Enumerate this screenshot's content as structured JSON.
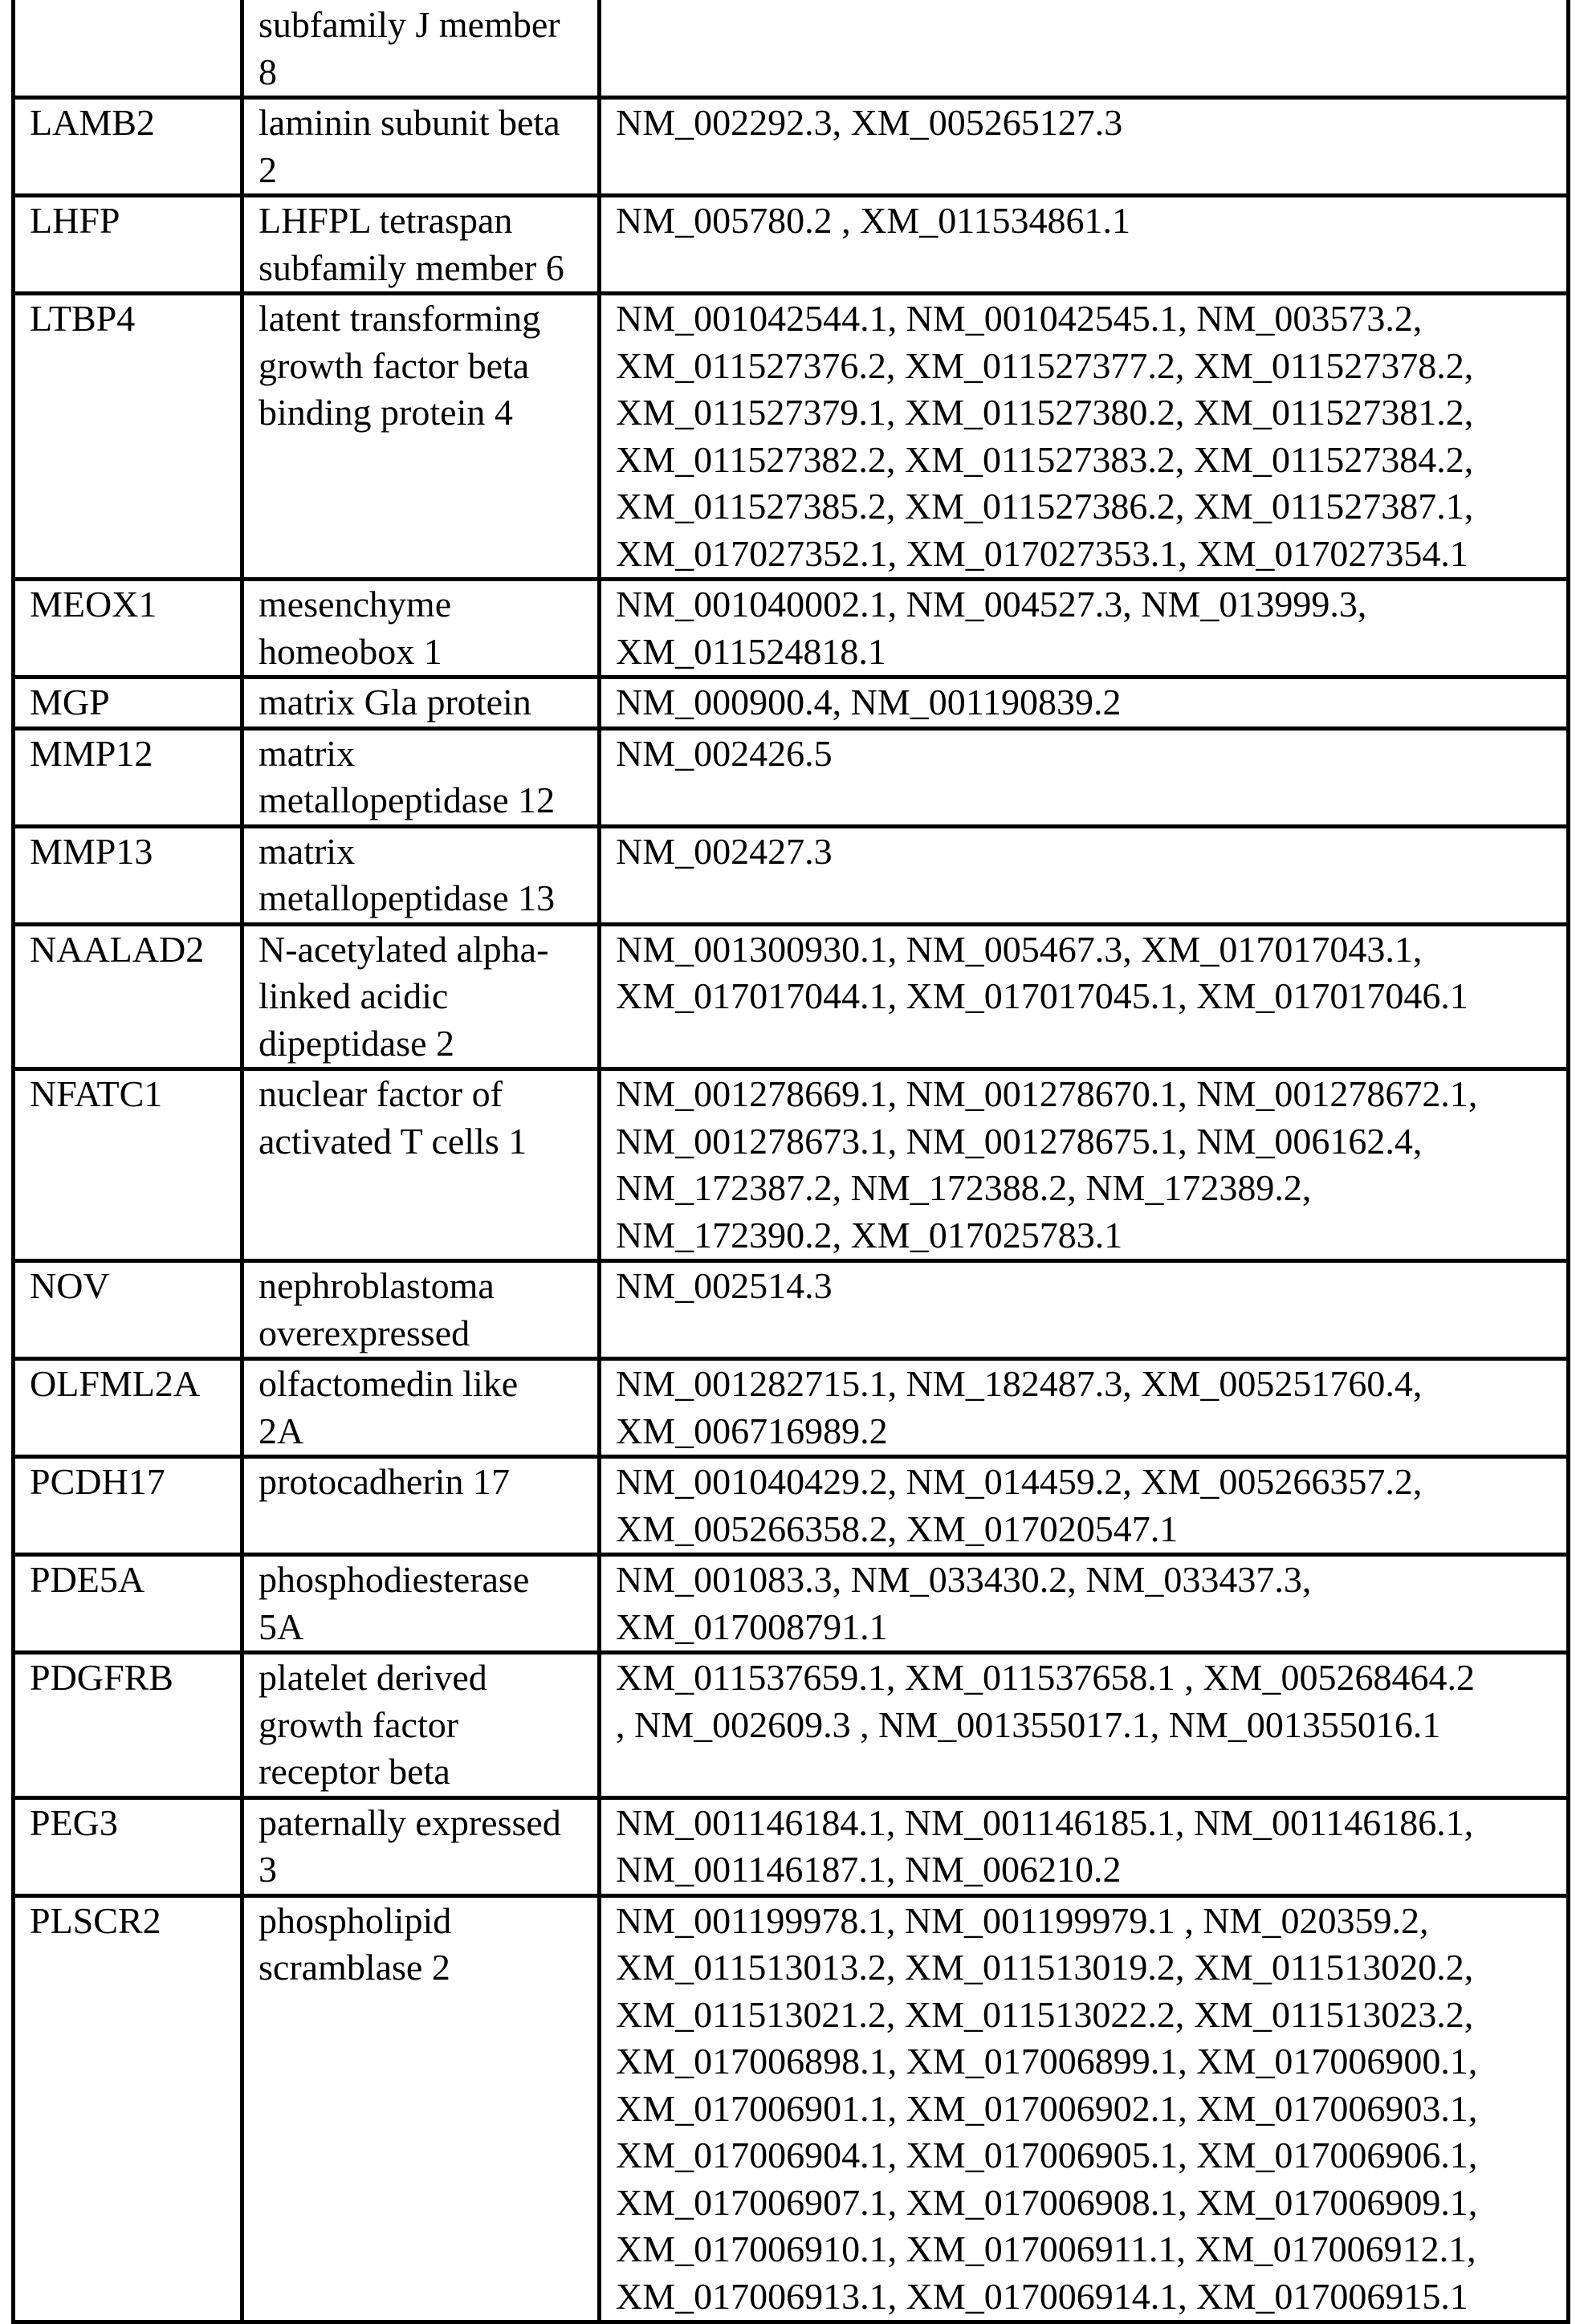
{
  "table": {
    "rows": [
      {
        "symbol": "",
        "name": [
          "subfamily J member",
          "8"
        ],
        "accessions": []
      },
      {
        "symbol": "LAMB2",
        "name": [
          "laminin subunit beta",
          "2"
        ],
        "accessions": [
          "NM_002292.3, XM_005265127.3"
        ]
      },
      {
        "symbol": "LHFP",
        "name": [
          "LHFPL tetraspan",
          "subfamily member 6"
        ],
        "accessions": [
          "NM_005780.2 , XM_011534861.1"
        ]
      },
      {
        "symbol": "LTBP4",
        "name": [
          "latent transforming",
          "growth factor beta",
          "binding protein 4"
        ],
        "accessions": [
          "NM_001042544.1, NM_001042545.1, NM_003573.2,",
          "XM_011527376.2, XM_011527377.2, XM_011527378.2,",
          "XM_011527379.1, XM_011527380.2, XM_011527381.2,",
          "XM_011527382.2, XM_011527383.2, XM_011527384.2,",
          "XM_011527385.2, XM_011527386.2, XM_011527387.1,",
          "XM_017027352.1, XM_017027353.1, XM_017027354.1"
        ]
      },
      {
        "symbol": "MEOX1",
        "name": [
          "mesenchyme",
          "homeobox 1"
        ],
        "accessions": [
          "NM_001040002.1, NM_004527.3, NM_013999.3,",
          "XM_011524818.1"
        ]
      },
      {
        "symbol": "MGP",
        "name": [
          "matrix Gla protein"
        ],
        "accessions": [
          "NM_000900.4, NM_001190839.2"
        ]
      },
      {
        "symbol": "MMP12",
        "name": [
          "matrix",
          "metallopeptidase 12"
        ],
        "accessions": [
          "NM_002426.5"
        ]
      },
      {
        "symbol": "MMP13",
        "name": [
          "matrix",
          "metallopeptidase 13"
        ],
        "accessions": [
          "NM_002427.3"
        ]
      },
      {
        "symbol": "NAALAD2",
        "name": [
          "N-acetylated alpha-",
          "linked acidic",
          "dipeptidase 2"
        ],
        "accessions": [
          "NM_001300930.1, NM_005467.3, XM_017017043.1,",
          "XM_017017044.1, XM_017017045.1, XM_017017046.1"
        ]
      },
      {
        "symbol": "NFATC1",
        "name": [
          "nuclear factor of",
          "activated T cells 1"
        ],
        "accessions": [
          "NM_001278669.1, NM_001278670.1, NM_001278672.1,",
          "NM_001278673.1, NM_001278675.1, NM_006162.4,",
          "NM_172387.2, NM_172388.2, NM_172389.2,",
          "NM_172390.2, XM_017025783.1"
        ]
      },
      {
        "symbol": "NOV",
        "name": [
          "nephroblastoma",
          "overexpressed"
        ],
        "accessions": [
          "NM_002514.3"
        ]
      },
      {
        "symbol": "OLFML2A",
        "name": [
          "olfactomedin like",
          "2A"
        ],
        "accessions": [
          "NM_001282715.1, NM_182487.3, XM_005251760.4,",
          "XM_006716989.2"
        ]
      },
      {
        "symbol": "PCDH17",
        "name": [
          "protocadherin 17"
        ],
        "accessions": [
          "NM_001040429.2, NM_014459.2, XM_005266357.2,",
          "XM_005266358.2, XM_017020547.1"
        ]
      },
      {
        "symbol": "PDE5A",
        "name": [
          "phosphodiesterase",
          "5A"
        ],
        "accessions": [
          "NM_001083.3, NM_033430.2, NM_033437.3,",
          "XM_017008791.1"
        ]
      },
      {
        "symbol": "PDGFRB",
        "name": [
          "platelet derived",
          "growth factor",
          "receptor beta"
        ],
        "accessions": [
          "XM_011537659.1, XM_011537658.1 , XM_005268464.2",
          ", NM_002609.3 , NM_001355017.1, NM_001355016.1"
        ]
      },
      {
        "symbol": "PEG3",
        "name": [
          "paternally expressed",
          "3"
        ],
        "accessions": [
          "NM_001146184.1, NM_001146185.1, NM_001146186.1,",
          "NM_001146187.1, NM_006210.2"
        ]
      },
      {
        "symbol": "PLSCR2",
        "name": [
          "phospholipid",
          "scramblase 2"
        ],
        "accessions": [
          "NM_001199978.1, NM_001199979.1 , NM_020359.2,",
          "XM_011513013.2, XM_011513019.2, XM_011513020.2,",
          "XM_011513021.2, XM_011513022.2, XM_011513023.2,",
          "XM_017006898.1, XM_017006899.1, XM_017006900.1,",
          "XM_017006901.1, XM_017006902.1, XM_017006903.1,",
          "XM_017006904.1, XM_017006905.1, XM_017006906.1,",
          "XM_017006907.1, XM_017006908.1, XM_017006909.1,",
          "XM_017006910.1, XM_017006911.1, XM_017006912.1,",
          "XM_017006913.1, XM_017006914.1, XM_017006915.1"
        ]
      }
    ]
  }
}
